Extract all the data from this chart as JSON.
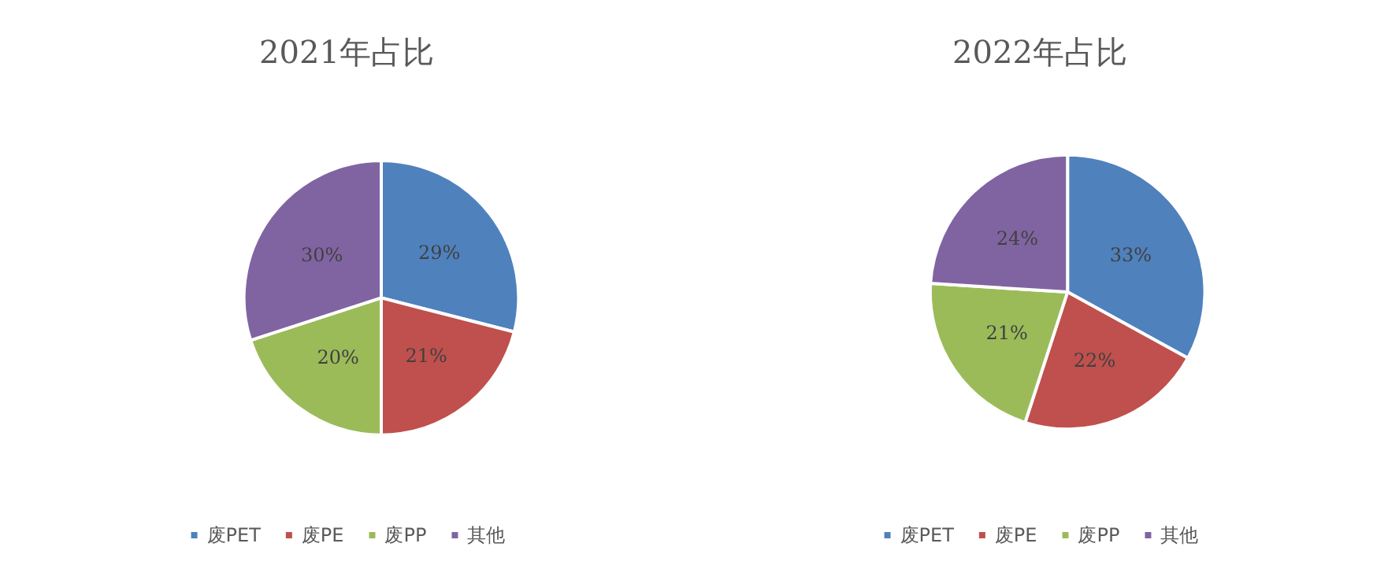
{
  "chart_data": [
    {
      "type": "pie",
      "title": "2021年占比",
      "categories": [
        "废PET",
        "废PE",
        "废PP",
        "其他"
      ],
      "values": [
        29,
        21,
        20,
        30
      ],
      "value_labels": [
        "29%",
        "21%",
        "20%",
        "30%"
      ],
      "colors": [
        "#4f81bd",
        "#c0504d",
        "#9bbb59",
        "#8064a2"
      ],
      "legend": "bottom"
    },
    {
      "type": "pie",
      "title": "2022年占比",
      "categories": [
        "废PET",
        "废PE",
        "废PP",
        "其他"
      ],
      "values": [
        33,
        22,
        21,
        24
      ],
      "value_labels": [
        "33%",
        "22%",
        "21%",
        "24%"
      ],
      "colors": [
        "#4f81bd",
        "#c0504d",
        "#9bbb59",
        "#8064a2"
      ],
      "legend": "bottom"
    }
  ]
}
